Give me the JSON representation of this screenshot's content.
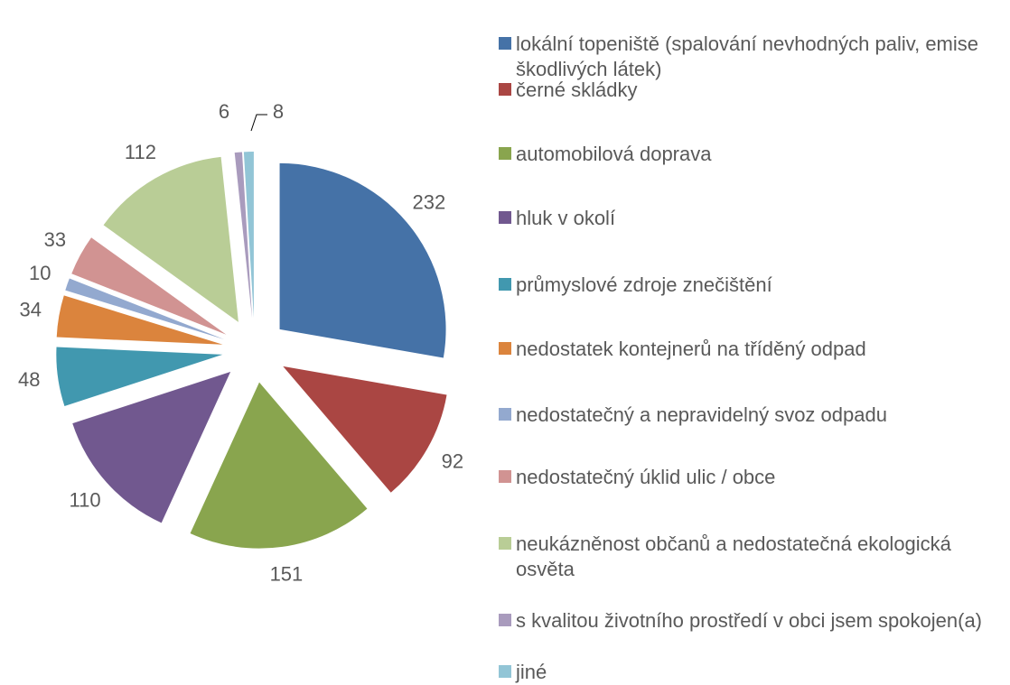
{
  "chart_data": {
    "type": "pie",
    "categories": [
      "lokální topeniště (spalování nevhodných paliv, emise škodlivých látek)",
      "černé skládky",
      "automobilová doprava",
      "hluk v okolí",
      "průmyslové zdroje znečištění",
      "nedostatek kontejnerů na tříděný odpad",
      "nedostatečný a nepravidelný svoz odpadu",
      "nedostatečný úklid ulic / obce",
      "neukázněnost občanů a nedostatečná ekologická osvěta",
      "s kvalitou životního prostředí v obci jsem spokojen(a)",
      "jiné"
    ],
    "values": [
      232,
      92,
      151,
      110,
      48,
      34,
      10,
      33,
      112,
      6,
      8
    ],
    "colors": [
      "#4572a7",
      "#aa4643",
      "#89a54e",
      "#71588f",
      "#4198af",
      "#db843d",
      "#93a9cf",
      "#d19392",
      "#b9cd96",
      "#a99bbd",
      "#92c5d6"
    ],
    "legend": "right"
  }
}
